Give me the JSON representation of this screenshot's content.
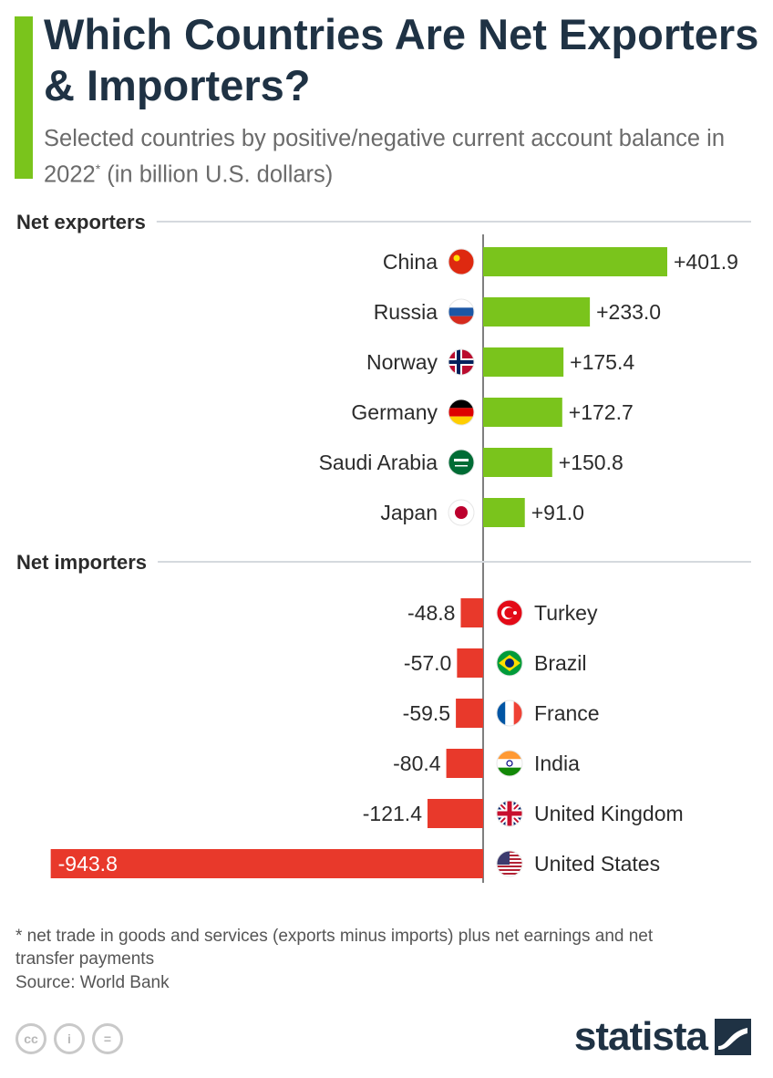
{
  "header": {
    "title": "Which Countries Are Net Exporters & Importers?",
    "subtitle": "Selected countries by positive/negative current account balance in 2022",
    "subtitle_mark": "*",
    "subtitle_unit": " (in billion U.S. dollars)"
  },
  "chart_data": {
    "type": "bar",
    "orientation": "horizontal",
    "colors": {
      "positive": "#7ac41c",
      "negative": "#e8392b"
    },
    "groups": [
      {
        "label": "Net exporters",
        "categories": [
          "China",
          "Russia",
          "Norway",
          "Germany",
          "Saudi Arabia",
          "Japan"
        ],
        "values": [
          401.9,
          233.0,
          175.4,
          172.7,
          150.8,
          91.0
        ],
        "value_labels": [
          "+401.9",
          "+233.0",
          "+175.4",
          "+172.7",
          "+150.8",
          "+91.0"
        ]
      },
      {
        "label": "Net importers",
        "categories": [
          "Turkey",
          "Brazil",
          "France",
          "India",
          "United Kingdom",
          "United States"
        ],
        "values": [
          -48.8,
          -57.0,
          -59.5,
          -80.4,
          -121.4,
          -943.8
        ],
        "value_labels": [
          "-48.8",
          "-57.0",
          "-59.5",
          "-80.4",
          "-121.4",
          "-943.8"
        ]
      }
    ],
    "flag_icons": [
      "china-flag-icon",
      "russia-flag-icon",
      "norway-flag-icon",
      "germany-flag-icon",
      "saudi-arabia-flag-icon",
      "japan-flag-icon",
      "turkey-flag-icon",
      "brazil-flag-icon",
      "france-flag-icon",
      "india-flag-icon",
      "united-kingdom-flag-icon",
      "united-states-flag-icon"
    ]
  },
  "footer": {
    "footnote": "* net trade in goods and services (exports minus imports) plus net earnings and net transfer payments",
    "source": "Source: World Bank",
    "license_icons": [
      "cc-icon",
      "person-icon",
      "equals-icon"
    ],
    "license_labels": [
      "cc",
      "i",
      "="
    ],
    "brand": "statista"
  }
}
